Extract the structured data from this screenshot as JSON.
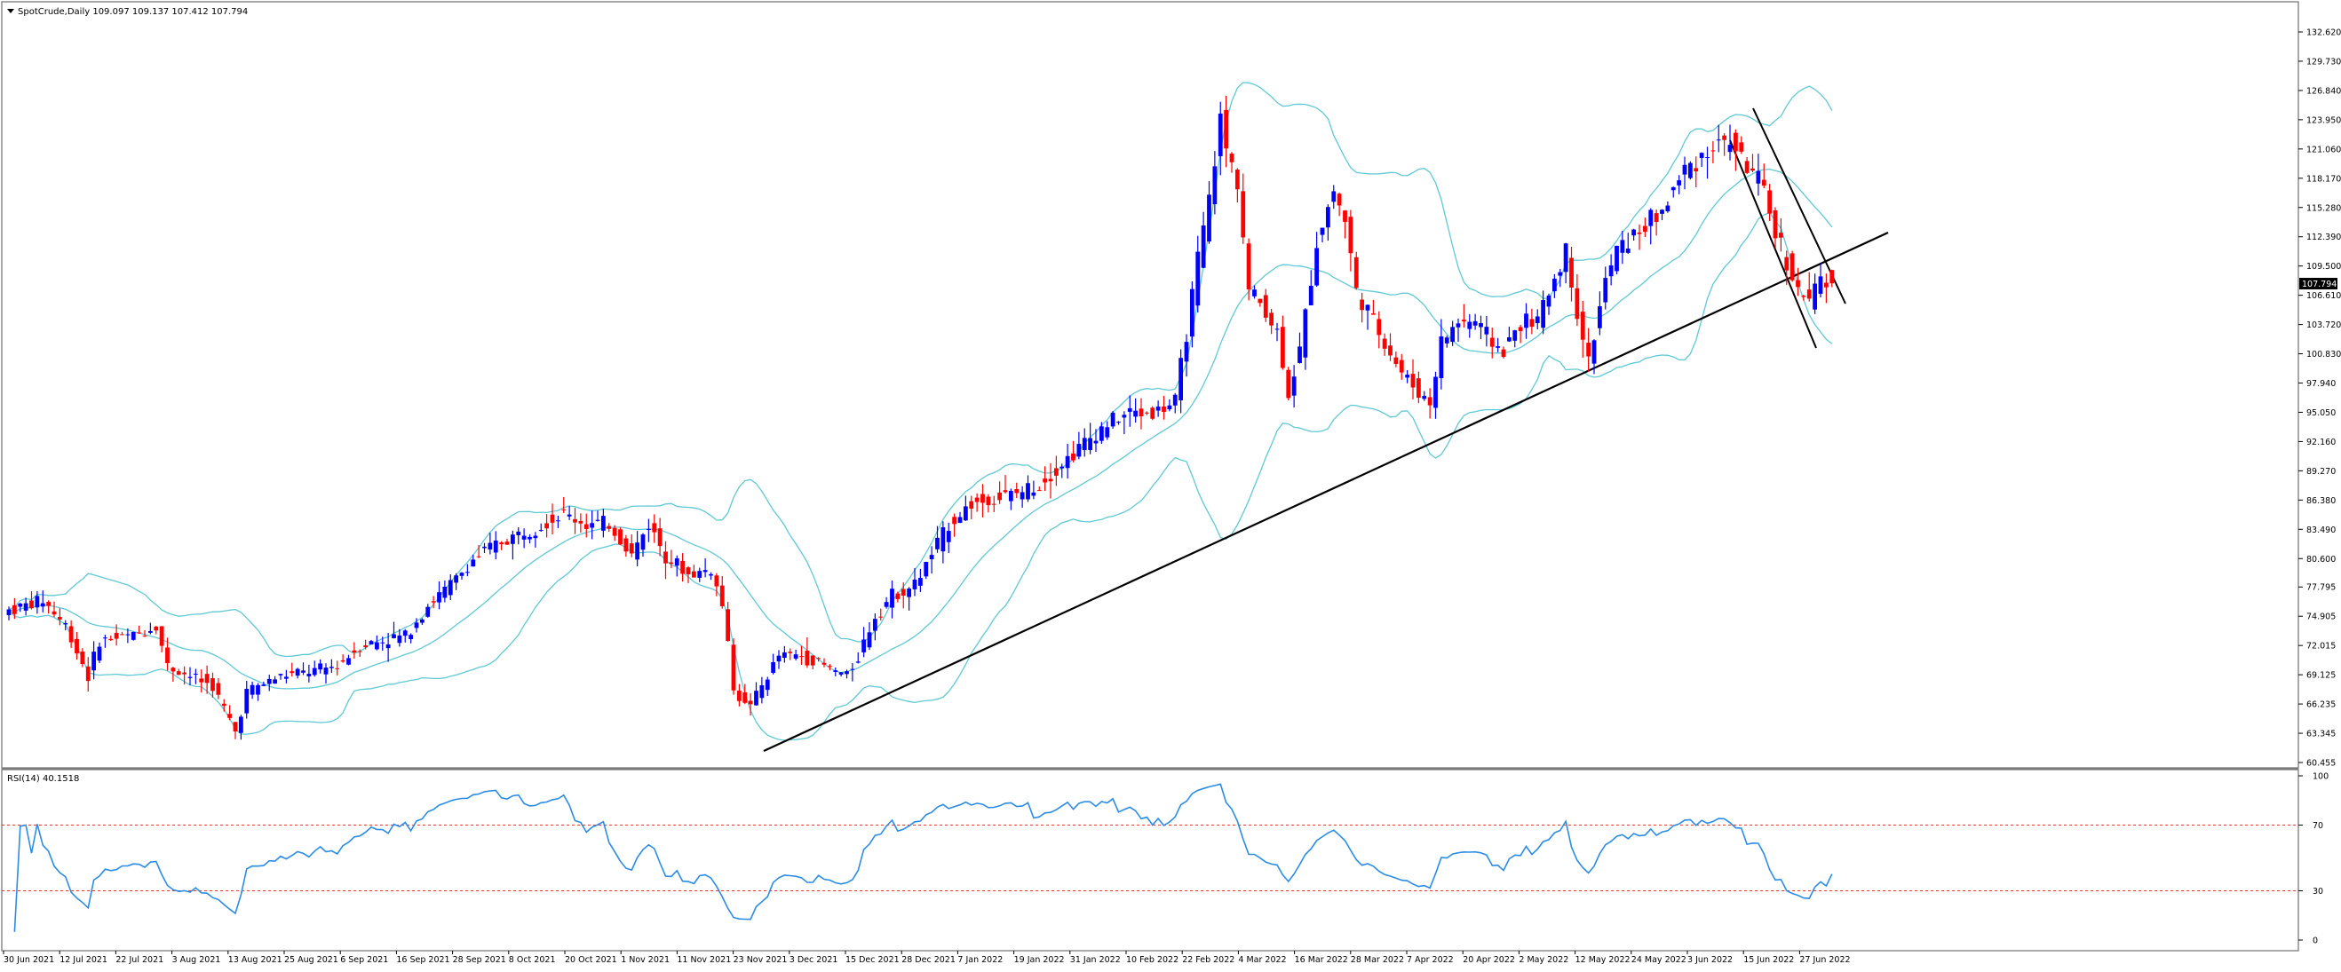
{
  "main": {
    "header_icon": "triangle-down-icon",
    "header_text": "SpotCrude,Daily  109.097 109.137 107.412 107.794",
    "current_price": "107.794"
  },
  "rsi": {
    "label": "RSI(14) 40.1518"
  },
  "chart_data": [
    {
      "type": "candlestick",
      "title": "SpotCrude,Daily",
      "ohlc_last": {
        "open": 109.097,
        "high": 109.137,
        "low": 107.412,
        "close": 107.794
      },
      "current_price_label": "107.794",
      "ylim": [
        60.455,
        132.62
      ],
      "y_ticks": [
        "132.620",
        "129.730",
        "126.840",
        "123.950",
        "121.060",
        "118.170",
        "115.280",
        "112.390",
        "109.500",
        "106.610",
        "103.720",
        "100.830",
        "97.940",
        "95.050",
        "92.160",
        "89.270",
        "86.380",
        "83.490",
        "80.600",
        "77.795",
        "74.905",
        "72.015",
        "69.125",
        "66.235",
        "63.345",
        "60.455"
      ],
      "x_tick_labels": [
        "30 Jun 2021",
        "12 Jul 2021",
        "22 Jul 2021",
        "3 Aug 2021",
        "13 Aug 2021",
        "25 Aug 2021",
        "6 Sep 2021",
        "16 Sep 2021",
        "28 Sep 2021",
        "8 Oct 2021",
        "20 Oct 2021",
        "1 Nov 2021",
        "11 Nov 2021",
        "23 Nov 2021",
        "3 Dec 2021",
        "15 Dec 2021",
        "28 Dec 2021",
        "7 Jan 2022",
        "19 Jan 2022",
        "31 Jan 2022",
        "10 Feb 2022",
        "22 Feb 2022",
        "4 Mar 2022",
        "16 Mar 2022",
        "28 Mar 2022",
        "7 Apr 2022",
        "20 Apr 2022",
        "2 May 2022",
        "12 May 2022",
        "24 May 2022",
        "3 Jun 2022",
        "15 Jun 2022",
        "27 Jun 2022"
      ],
      "price_anchors": [
        [
          0,
          75.5
        ],
        [
          6,
          76.5
        ],
        [
          10,
          74
        ],
        [
          14,
          69
        ],
        [
          16,
          72.5
        ],
        [
          22,
          73
        ],
        [
          26,
          74
        ],
        [
          28,
          70
        ],
        [
          32,
          69
        ],
        [
          36,
          68
        ],
        [
          40,
          63.5
        ],
        [
          42,
          67.5
        ],
        [
          48,
          69
        ],
        [
          54,
          69.5
        ],
        [
          58,
          70
        ],
        [
          62,
          72
        ],
        [
          66,
          72.5
        ],
        [
          70,
          73
        ],
        [
          74,
          76
        ],
        [
          78,
          78
        ],
        [
          82,
          80.5
        ],
        [
          86,
          82
        ],
        [
          90,
          83
        ],
        [
          94,
          84
        ],
        [
          98,
          85
        ],
        [
          102,
          84
        ],
        [
          106,
          84
        ],
        [
          110,
          81
        ],
        [
          113,
          84
        ],
        [
          116,
          81
        ],
        [
          120,
          79
        ],
        [
          124,
          79.5
        ],
        [
          126,
          76
        ],
        [
          128,
          68
        ],
        [
          130,
          66
        ],
        [
          132,
          67
        ],
        [
          136,
          71
        ],
        [
          140,
          71
        ],
        [
          144,
          70
        ],
        [
          148,
          69
        ],
        [
          150,
          71
        ],
        [
          153,
          75
        ],
        [
          156,
          77
        ],
        [
          160,
          78
        ],
        [
          163,
          81
        ],
        [
          166,
          84
        ],
        [
          170,
          86
        ],
        [
          174,
          86.5
        ],
        [
          178,
          87
        ],
        [
          182,
          88
        ],
        [
          186,
          90
        ],
        [
          190,
          92
        ],
        [
          194,
          94
        ],
        [
          198,
          95
        ],
        [
          202,
          95
        ],
        [
          206,
          96
        ],
        [
          210,
          110
        ],
        [
          212,
          116
        ],
        [
          214,
          124
        ],
        [
          215,
          121
        ],
        [
          217,
          118
        ],
        [
          219,
          107
        ],
        [
          221,
          106
        ],
        [
          224,
          103
        ],
        [
          226,
          97
        ],
        [
          228,
          101
        ],
        [
          231,
          112
        ],
        [
          234,
          117
        ],
        [
          236,
          114
        ],
        [
          238,
          107
        ],
        [
          241,
          104
        ],
        [
          244,
          101
        ],
        [
          246,
          99
        ],
        [
          249,
          97
        ],
        [
          251,
          96
        ],
        [
          253,
          102
        ],
        [
          256,
          104
        ],
        [
          259,
          104
        ],
        [
          262,
          102
        ],
        [
          264,
          101
        ],
        [
          267,
          104
        ],
        [
          270,
          104
        ],
        [
          272,
          107
        ],
        [
          275,
          111
        ],
        [
          277,
          105
        ],
        [
          279,
          100
        ],
        [
          282,
          108
        ],
        [
          284,
          111
        ],
        [
          288,
          113
        ],
        [
          292,
          115
        ],
        [
          296,
          119
        ],
        [
          300,
          121
        ],
        [
          304,
          122
        ],
        [
          306,
          120
        ],
        [
          309,
          118
        ],
        [
          312,
          113
        ],
        [
          314,
          110
        ],
        [
          316,
          107
        ],
        [
          318,
          106
        ],
        [
          320,
          108
        ],
        [
          322,
          107.8
        ]
      ],
      "indicators": [
        "Bollinger Bands (upper, middle, lower)"
      ],
      "trendlines": [
        "Ascending support line from Nov 2021 lows",
        "Descending channel lines from early Jun 2022 high"
      ]
    },
    {
      "type": "line",
      "title": "RSI(14) 40.1518",
      "ylim": [
        0,
        100
      ],
      "y_ticks": [
        "100",
        "70",
        "30",
        "0"
      ],
      "levels": [
        70,
        30
      ],
      "series": [
        {
          "name": "RSI(14)",
          "last": 40.1518
        }
      ]
    }
  ],
  "colors": {
    "bull": "#0000ff",
    "bear": "#ff0000",
    "bands": "#5fc9d4",
    "rsi_line": "#2b8ce6",
    "levels": "#e03c3c",
    "trendline": "#000000",
    "price_tag_bg": "#000000",
    "price_tag_fg": "#ffffff"
  }
}
